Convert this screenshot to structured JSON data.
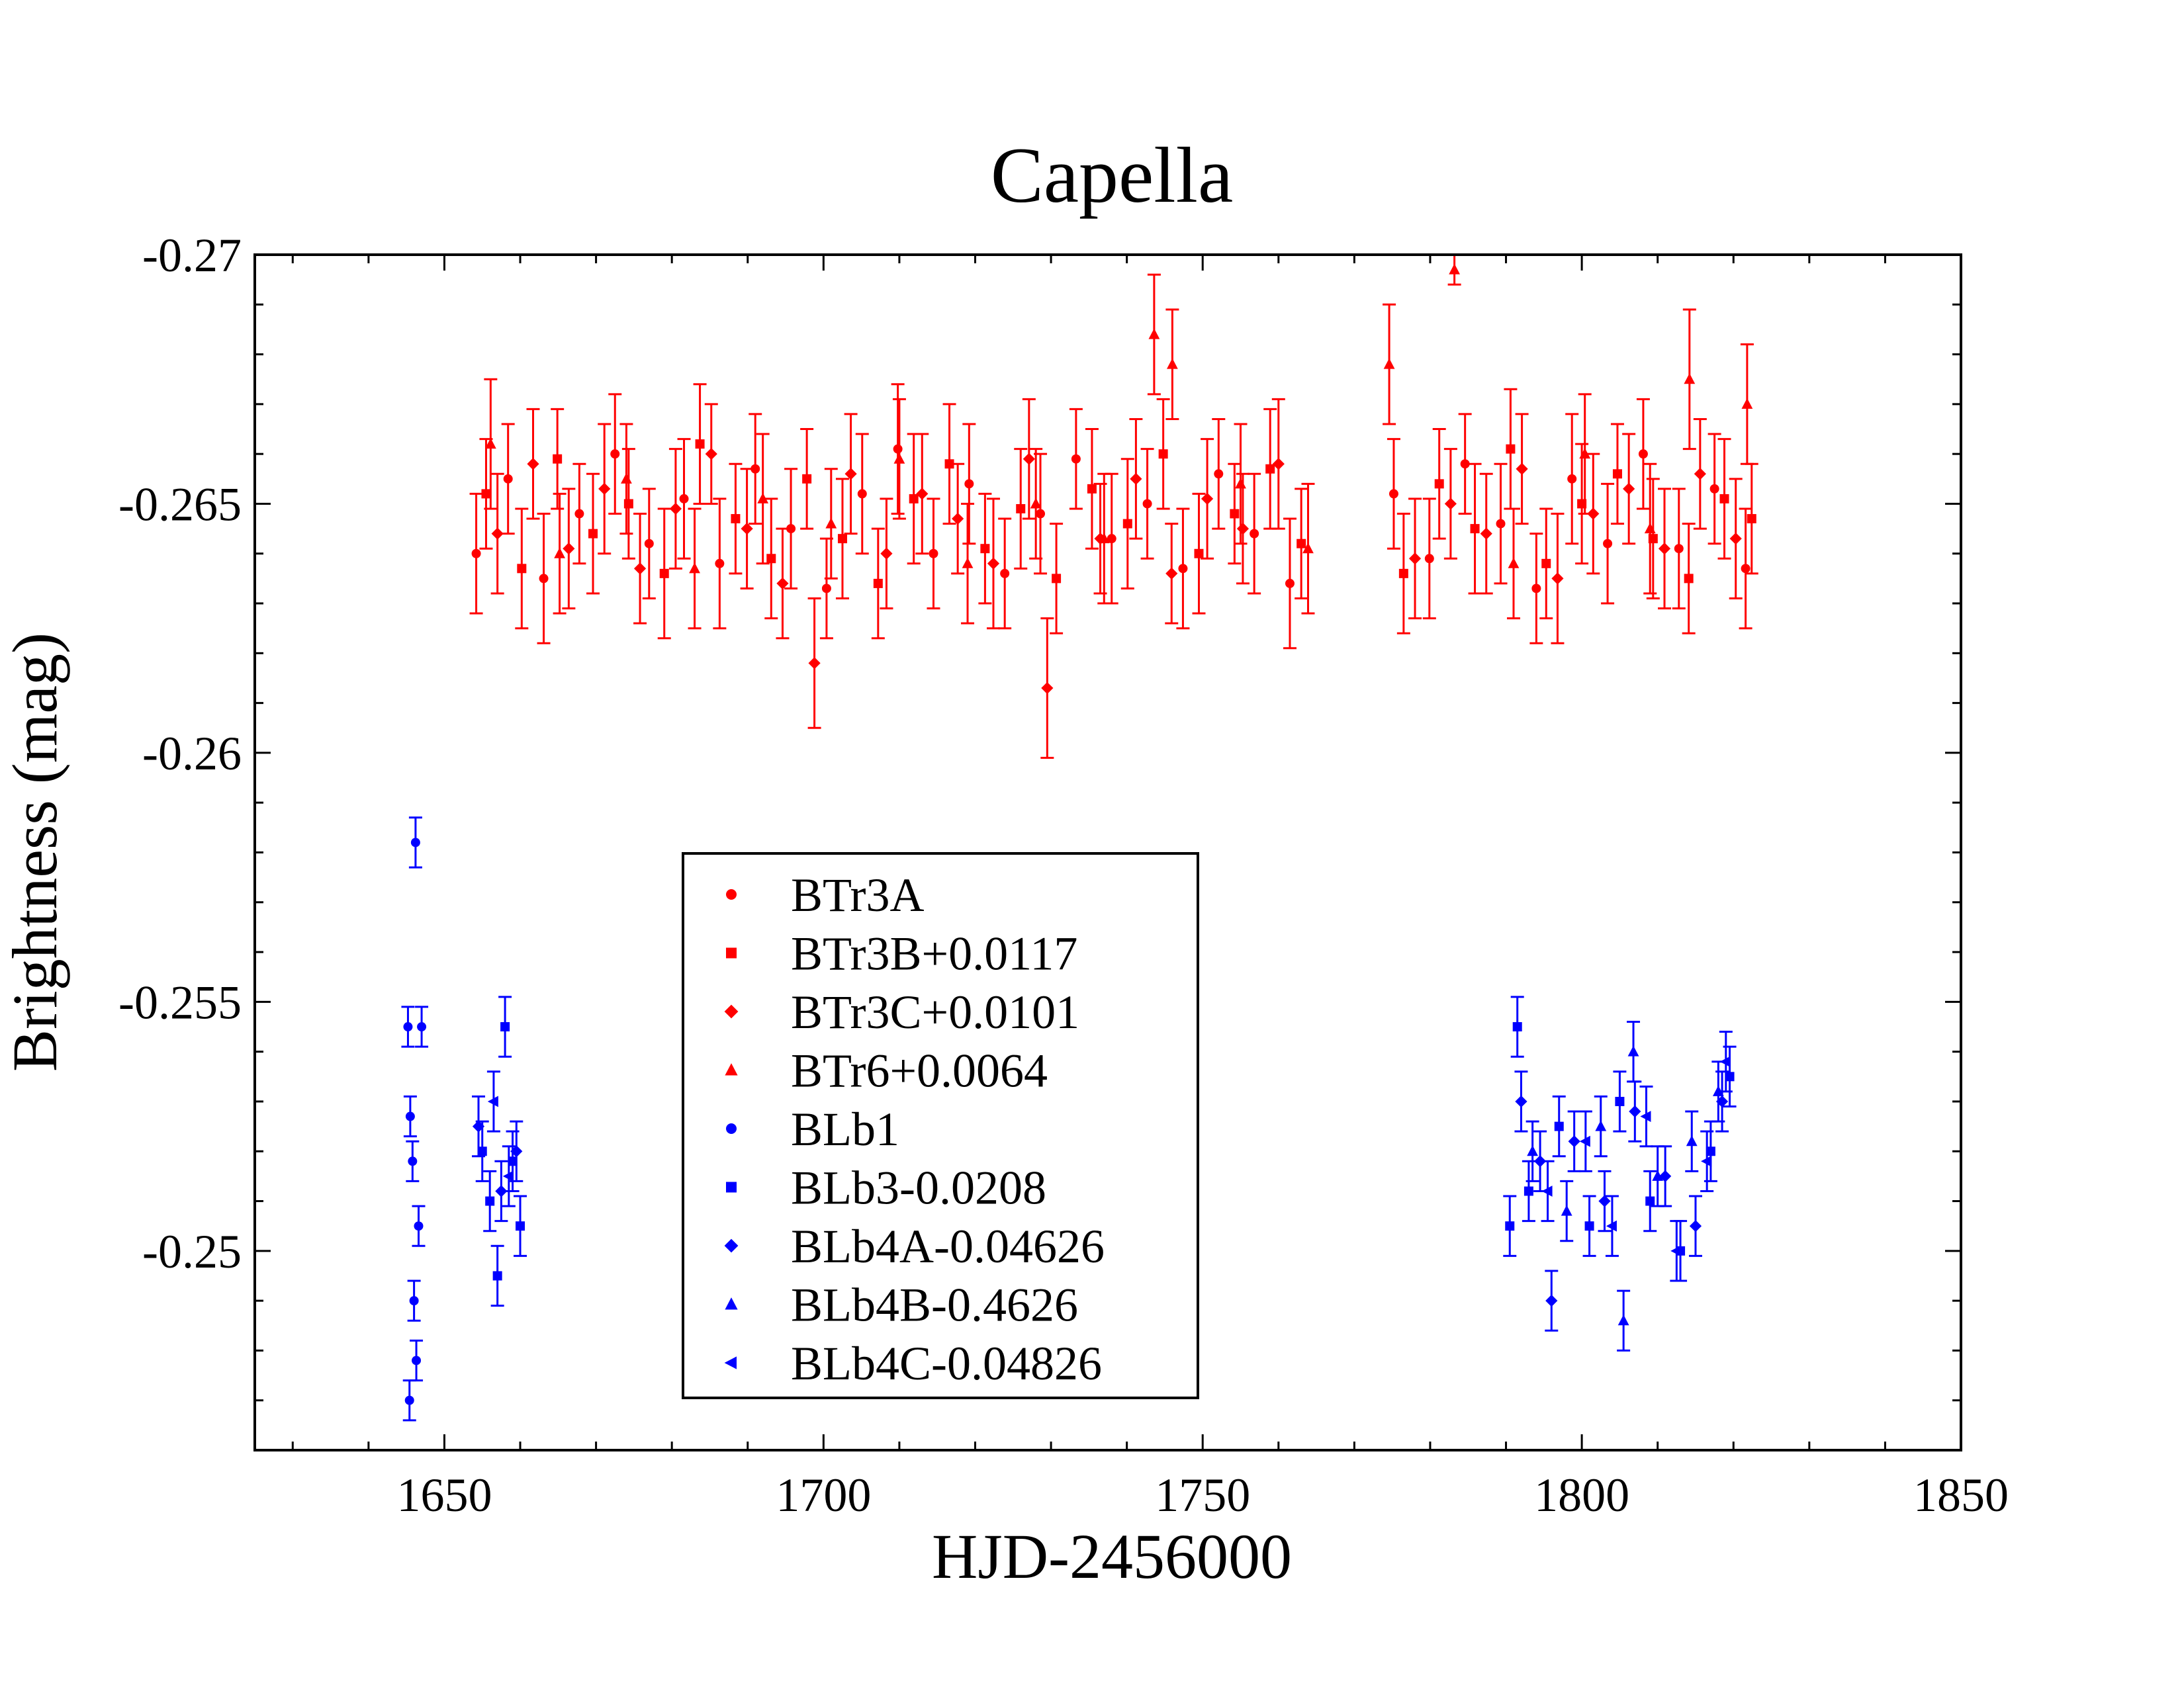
{
  "chart_data": {
    "type": "scatter",
    "title": "Capella",
    "xlabel": "HJD-2456000",
    "ylabel": "Brightness (mag)",
    "xlim": [
      1625,
      1850
    ],
    "ylim": [
      -0.27,
      -0.246
    ],
    "y_inverted": true,
    "grid": false,
    "legend_position": "lower-center",
    "x_ticks": [
      1650,
      1700,
      1750,
      1800,
      1850
    ],
    "x_tick_labels": [
      "1650",
      "1700",
      "1750",
      "1800",
      "1850"
    ],
    "y_ticks": [
      -0.27,
      -0.265,
      -0.26,
      -0.255,
      -0.25
    ],
    "y_tick_labels": [
      "-0.27",
      "-0.265",
      "-0.26",
      "-0.255",
      "-0.25"
    ],
    "colors": {
      "red": "#ff0000",
      "blue": "#0000ff",
      "axis": "#000000"
    },
    "series": [
      {
        "name": "BTr3A",
        "marker": "circle",
        "color": "#ff0000",
        "x": [
          1654.2,
          1658.4,
          1663.1,
          1667.8,
          1672.5,
          1677.0,
          1681.6,
          1686.3,
          1691.0,
          1695.7,
          1700.4,
          1705.1,
          1709.8,
          1714.5,
          1719.2,
          1723.9,
          1728.6,
          1733.3,
          1738.0,
          1742.7,
          1747.4,
          1752.1,
          1756.8,
          1761.5,
          1775.2,
          1779.9,
          1784.6,
          1789.3,
          1794.0,
          1798.7,
          1803.4,
          1808.1,
          1812.8,
          1817.5,
          1821.6
        ],
        "y": [
          -0.264,
          -0.2655,
          -0.2635,
          -0.2648,
          -0.266,
          -0.2642,
          -0.2651,
          -0.2638,
          -0.2657,
          -0.2645,
          -0.2633,
          -0.2652,
          -0.2661,
          -0.264,
          -0.2654,
          -0.2636,
          -0.2648,
          -0.2659,
          -0.2643,
          -0.265,
          -0.2637,
          -0.2656,
          -0.2644,
          -0.2634,
          -0.2652,
          -0.2639,
          -0.2658,
          -0.2646,
          -0.2633,
          -0.2655,
          -0.2642,
          -0.266,
          -0.2641,
          -0.2653,
          -0.2637
        ],
        "err": [
          0.0012,
          0.0011,
          0.0013,
          0.001,
          0.0012,
          0.0011,
          0.0012,
          0.0013,
          0.0011,
          0.0012,
          0.001,
          0.0012,
          0.0013,
          0.0011,
          0.0012,
          0.0011,
          0.0012,
          0.001,
          0.0013,
          0.0011,
          0.0012,
          0.0011,
          0.0012,
          0.0013,
          0.0011,
          0.0012,
          0.001,
          0.0012,
          0.0011,
          0.0013,
          0.0012,
          0.0011,
          0.0012,
          0.0011,
          0.0012
        ]
      },
      {
        "name": "BTr3B+0.0117",
        "marker": "square",
        "color": "#ff0000",
        "x": [
          1655.5,
          1660.2,
          1664.9,
          1669.6,
          1674.3,
          1679.0,
          1683.7,
          1688.4,
          1693.1,
          1697.8,
          1702.5,
          1707.2,
          1711.9,
          1716.6,
          1721.3,
          1726.0,
          1730.7,
          1735.4,
          1740.1,
          1744.8,
          1749.5,
          1754.2,
          1758.9,
          1763.0,
          1776.5,
          1781.2,
          1785.9,
          1790.6,
          1795.3,
          1800.0,
          1804.7,
          1809.4,
          1814.1,
          1818.8,
          1822.4
        ],
        "y": [
          -0.2652,
          -0.2637,
          -0.2659,
          -0.2644,
          -0.265,
          -0.2636,
          -0.2662,
          -0.2647,
          -0.2639,
          -0.2655,
          -0.2643,
          -0.2634,
          -0.2651,
          -0.2658,
          -0.2641,
          -0.2649,
          -0.2635,
          -0.2653,
          -0.2646,
          -0.266,
          -0.264,
          -0.2648,
          -0.2657,
          -0.2642,
          -0.2636,
          -0.2654,
          -0.2645,
          -0.2661,
          -0.2638,
          -0.265,
          -0.2656,
          -0.2643,
          -0.2635,
          -0.2651,
          -0.2647
        ],
        "err": [
          0.0011,
          0.0012,
          0.001,
          0.0012,
          0.0011,
          0.0013,
          0.0012,
          0.0011,
          0.0012,
          0.001,
          0.0012,
          0.0011,
          0.0013,
          0.0012,
          0.0011,
          0.0012,
          0.0011,
          0.0012,
          0.0013,
          0.0011,
          0.0012,
          0.001,
          0.0012,
          0.0011,
          0.0012,
          0.0011,
          0.0013,
          0.0012,
          0.0011,
          0.0012,
          0.001,
          0.0012,
          0.0011,
          0.0012,
          0.0011
        ]
      },
      {
        "name": "BTr3C+0.0101",
        "marker": "diamond",
        "color": "#ff0000",
        "x": [
          1657.0,
          1661.7,
          1666.4,
          1671.1,
          1675.8,
          1680.5,
          1685.2,
          1689.9,
          1694.6,
          1698.8,
          1703.6,
          1708.3,
          1713.0,
          1717.7,
          1722.4,
          1727.1,
          1729.5,
          1736.5,
          1741.2,
          1745.9,
          1750.6,
          1755.3,
          1760.0,
          1778.0,
          1782.7,
          1787.4,
          1792.1,
          1796.8,
          1801.5,
          1806.2,
          1810.9,
          1815.6,
          1820.3
        ],
        "y": [
          -0.2644,
          -0.2658,
          -0.2641,
          -0.2653,
          -0.2637,
          -0.2649,
          -0.266,
          -0.2645,
          -0.2634,
          -0.2618,
          -0.2656,
          -0.264,
          -0.2652,
          -0.2647,
          -0.2638,
          -0.2659,
          -0.2613,
          -0.2643,
          -0.2655,
          -0.2636,
          -0.2651,
          -0.2645,
          -0.2658,
          -0.2639,
          -0.265,
          -0.2644,
          -0.2657,
          -0.2635,
          -0.2648,
          -0.2653,
          -0.2641,
          -0.2656,
          -0.2643
        ],
        "err": [
          0.0012,
          0.0011,
          0.0012,
          0.0013,
          0.0011,
          0.0012,
          0.001,
          0.0012,
          0.0011,
          0.0013,
          0.0012,
          0.0011,
          0.0012,
          0.0011,
          0.0013,
          0.0012,
          0.0014,
          0.0011,
          0.0012,
          0.001,
          0.0012,
          0.0011,
          0.0013,
          0.0012,
          0.0011,
          0.0012,
          0.0011,
          0.0013,
          0.0012,
          0.0011,
          0.0012,
          0.0011,
          0.0012
        ]
      },
      {
        "name": "BTr6+0.0064",
        "marker": "triangle",
        "color": "#ff0000",
        "x": [
          1656.1,
          1665.2,
          1674.0,
          1683.0,
          1692.0,
          1701.0,
          1710.0,
          1719.0,
          1728.0,
          1737.0,
          1743.6,
          1746.0,
          1755.0,
          1763.9,
          1774.6,
          1783.2,
          1791.0,
          1800.4,
          1809.0,
          1814.2,
          1821.8
        ],
        "y": [
          -0.2662,
          -0.264,
          -0.2655,
          -0.2637,
          -0.2651,
          -0.2646,
          -0.2659,
          -0.2638,
          -0.265,
          -0.2643,
          -0.2684,
          -0.2678,
          -0.2654,
          -0.2641,
          -0.2678,
          -0.2697,
          -0.2638,
          -0.266,
          -0.2645,
          -0.2675,
          -0.267
        ],
        "err": [
          0.0013,
          0.0012,
          0.0011,
          0.0012,
          0.0013,
          0.0011,
          0.0012,
          0.0012,
          0.0011,
          0.0013,
          0.0012,
          0.0011,
          0.0012,
          0.0013,
          0.0012,
          0.0003,
          0.0011,
          0.0012,
          0.0013,
          0.0014,
          0.0012
        ]
      },
      {
        "name": "BLb1",
        "marker": "circle",
        "color": "#0000ff",
        "x": [
          1645.2,
          1645.5,
          1645.8,
          1646.0,
          1646.3,
          1646.6,
          1647.0,
          1645.4,
          1646.2
        ],
        "y": [
          -0.2545,
          -0.2527,
          -0.2518,
          -0.249,
          -0.2478,
          -0.2505,
          -0.2545,
          -0.247,
          -0.2582
        ],
        "err": [
          0.0004,
          0.0004,
          0.0004,
          0.0004,
          0.0004,
          0.0004,
          0.0004,
          0.0004,
          0.0005
        ]
      },
      {
        "name": "BLb3-0.0208",
        "marker": "square",
        "color": "#0000ff",
        "x": [
          1655.0,
          1656.0,
          1657.0,
          1658.0,
          1659.0,
          1660.0,
          1790.5,
          1791.5,
          1793.0,
          1797.0,
          1801.0,
          1805.0,
          1809.0,
          1813.0,
          1817.0,
          1819.5
        ],
        "y": [
          -0.252,
          -0.251,
          -0.2495,
          -0.2545,
          -0.2518,
          -0.2505,
          -0.2505,
          -0.2545,
          -0.2512,
          -0.2525,
          -0.2505,
          -0.253,
          -0.251,
          -0.25,
          -0.252,
          -0.2535
        ],
        "err": [
          0.0006,
          0.0006,
          0.0006,
          0.0006,
          0.0006,
          0.0006,
          0.0006,
          0.0006,
          0.0006,
          0.0006,
          0.0006,
          0.0006,
          0.0006,
          0.0006,
          0.0006,
          0.0006
        ]
      },
      {
        "name": "BLb4A-0.04626",
        "marker": "diamond",
        "color": "#0000ff",
        "x": [
          1654.5,
          1657.5,
          1659.5,
          1792.0,
          1794.5,
          1796.0,
          1799.0,
          1803.0,
          1807.0,
          1811.0,
          1815.0,
          1818.5
        ],
        "y": [
          -0.2525,
          -0.2512,
          -0.252,
          -0.253,
          -0.2518,
          -0.249,
          -0.2522,
          -0.251,
          -0.2528,
          -0.2515,
          -0.2505,
          -0.253
        ],
        "err": [
          0.0006,
          0.0006,
          0.0006,
          0.0006,
          0.0006,
          0.0006,
          0.0006,
          0.0006,
          0.0006,
          0.0006,
          0.0006,
          0.0006
        ]
      },
      {
        "name": "BLb4B-0.4626",
        "marker": "triangle",
        "color": "#0000ff",
        "x": [
          1793.5,
          1798.0,
          1802.5,
          1805.5,
          1806.8,
          1810.0,
          1814.5,
          1818.0
        ],
        "y": [
          -0.252,
          -0.2508,
          -0.2525,
          -0.2486,
          -0.254,
          -0.2515,
          -0.2522,
          -0.2532
        ],
        "err": [
          0.0006,
          0.0006,
          0.0006,
          0.0006,
          0.0006,
          0.0006,
          0.0006,
          0.0006
        ]
      },
      {
        "name": "BLb4C-0.04826",
        "marker": "left-triangle",
        "color": "#0000ff",
        "x": [
          1656.5,
          1658.5,
          1795.5,
          1800.5,
          1804.0,
          1808.5,
          1812.5,
          1816.5,
          1819.0
        ],
        "y": [
          -0.253,
          -0.2515,
          -0.2512,
          -0.2522,
          -0.2505,
          -0.2527,
          -0.25,
          -0.2518,
          -0.2538
        ],
        "err": [
          0.0006,
          0.0006,
          0.0006,
          0.0006,
          0.0006,
          0.0006,
          0.0006,
          0.0006,
          0.0006
        ]
      }
    ]
  }
}
